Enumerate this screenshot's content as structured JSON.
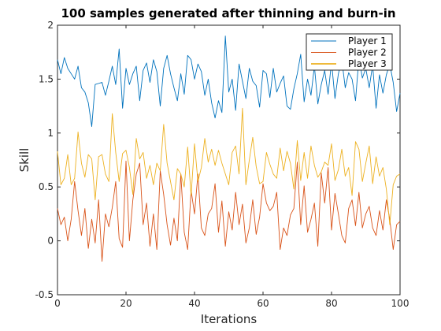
{
  "chart_data": {
    "type": "line",
    "title": "100 samples generated after thinning and burn-in",
    "xlabel": "Iterations",
    "ylabel": "Skill",
    "xlim": [
      0,
      100
    ],
    "ylim": [
      -0.5,
      2
    ],
    "xticks": [
      0,
      20,
      40,
      60,
      80,
      100
    ],
    "yticks": [
      -0.5,
      0,
      0.5,
      1,
      1.5,
      2
    ],
    "xtick_labels": [
      "0",
      "20",
      "40",
      "60",
      "80",
      "100"
    ],
    "ytick_labels": [
      "-0.5",
      "0",
      "0.5",
      "1",
      "1.5",
      "2"
    ],
    "grid": false,
    "legend_position": "top-right",
    "series": [
      {
        "name": "Player 1",
        "color": "#0072BD",
        "values": [
          1.68,
          1.55,
          1.7,
          1.6,
          1.55,
          1.5,
          1.62,
          1.42,
          1.38,
          1.28,
          1.06,
          1.45,
          1.46,
          1.47,
          1.35,
          1.48,
          1.62,
          1.45,
          1.78,
          1.23,
          1.6,
          1.45,
          1.55,
          1.62,
          1.3,
          1.58,
          1.65,
          1.47,
          1.68,
          1.57,
          1.25,
          1.6,
          1.72,
          1.55,
          1.42,
          1.3,
          1.55,
          1.36,
          1.72,
          1.68,
          1.5,
          1.64,
          1.57,
          1.35,
          1.5,
          1.28,
          1.14,
          1.3,
          1.19,
          1.9,
          1.38,
          1.5,
          1.21,
          1.64,
          1.48,
          1.32,
          1.6,
          1.48,
          1.44,
          1.24,
          1.58,
          1.55,
          1.33,
          1.6,
          1.38,
          1.46,
          1.53,
          1.25,
          1.22,
          1.41,
          1.55,
          1.73,
          1.29,
          1.5,
          1.35,
          1.62,
          1.27,
          1.45,
          1.58,
          1.36,
          1.66,
          1.32,
          1.55,
          1.68,
          1.42,
          1.56,
          1.5,
          1.3,
          1.7,
          1.51,
          1.6,
          1.42,
          1.63,
          1.23,
          1.54,
          1.37,
          1.54,
          1.64,
          1.47,
          1.2,
          1.37
        ]
      },
      {
        "name": "Player 2",
        "color": "#D95319",
        "values": [
          0.3,
          0.15,
          0.22,
          0.0,
          0.2,
          0.55,
          0.28,
          0.05,
          0.3,
          -0.07,
          0.2,
          -0.02,
          0.38,
          -0.19,
          0.25,
          0.13,
          0.31,
          0.55,
          0.02,
          -0.06,
          0.74,
          0.0,
          0.38,
          0.62,
          0.72,
          0.15,
          0.35,
          -0.05,
          0.25,
          -0.08,
          0.65,
          0.43,
          0.15,
          -0.04,
          0.21,
          0.0,
          0.62,
          0.08,
          -0.08,
          0.47,
          0.25,
          0.62,
          0.12,
          0.05,
          0.25,
          0.3,
          0.53,
          0.08,
          0.37,
          -0.05,
          0.27,
          0.1,
          0.45,
          0.15,
          0.34,
          -0.02,
          0.12,
          0.38,
          0.06,
          0.22,
          0.53,
          0.35,
          0.28,
          0.32,
          0.45,
          -0.08,
          0.12,
          0.05,
          0.24,
          0.3,
          0.73,
          0.15,
          0.51,
          0.08,
          0.2,
          0.35,
          -0.05,
          0.63,
          0.35,
          0.68,
          0.1,
          0.44,
          0.25,
          0.05,
          -0.02,
          0.3,
          0.38,
          0.14,
          0.45,
          0.12,
          0.25,
          0.32,
          0.12,
          0.05,
          0.28,
          0.1,
          0.38,
          0.2,
          -0.08,
          0.15,
          0.18
        ]
      },
      {
        "name": "Player 3",
        "color": "#EDB120",
        "values": [
          0.83,
          0.52,
          0.58,
          0.8,
          0.52,
          0.58,
          1.01,
          0.72,
          0.59,
          0.8,
          0.76,
          0.38,
          0.78,
          0.8,
          0.62,
          0.55,
          1.18,
          0.82,
          0.55,
          0.81,
          0.84,
          0.68,
          0.43,
          0.95,
          0.76,
          0.82,
          0.58,
          0.7,
          0.52,
          0.72,
          0.65,
          1.08,
          0.72,
          0.55,
          0.38,
          0.67,
          0.62,
          0.5,
          0.87,
          0.42,
          0.9,
          0.55,
          0.68,
          0.95,
          0.73,
          0.85,
          0.7,
          0.84,
          0.72,
          0.62,
          0.52,
          0.82,
          0.88,
          0.62,
          1.23,
          0.52,
          0.75,
          0.96,
          0.69,
          0.53,
          0.55,
          0.82,
          0.71,
          0.62,
          0.58,
          0.86,
          0.65,
          0.83,
          0.72,
          0.48,
          0.93,
          0.56,
          0.82,
          0.58,
          0.88,
          0.7,
          0.59,
          0.64,
          0.73,
          0.7,
          0.9,
          0.56,
          0.66,
          0.85,
          0.6,
          0.68,
          0.42,
          0.92,
          0.85,
          0.55,
          0.72,
          0.88,
          0.53,
          0.78,
          0.6,
          0.68,
          0.48,
          0.15,
          0.52,
          0.6,
          0.62
        ]
      }
    ]
  }
}
